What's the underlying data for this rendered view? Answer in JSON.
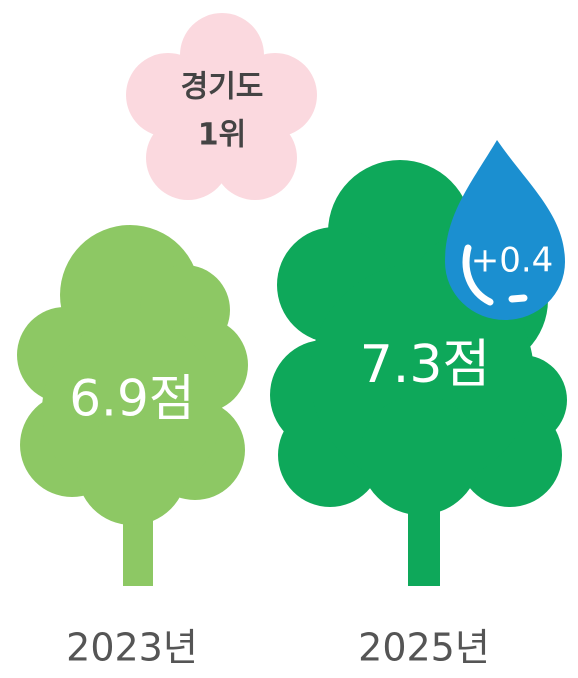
{
  "badge": {
    "lines": [
      "경기도",
      "1위"
    ]
  },
  "items": [
    {
      "year": "2023년",
      "score": "6.9점"
    },
    {
      "year": "2025년",
      "score": "7.3점",
      "change": "+0.4"
    }
  ]
}
